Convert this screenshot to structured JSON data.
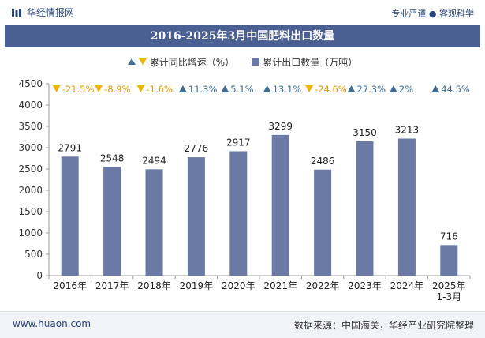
{
  "header": {
    "brand": "华经情报网",
    "tagline": "专业严谨 ● 客观科学"
  },
  "legend": {
    "growth_label": "累计同比增速（%）",
    "volume_label": "累计出口数量（万吨）"
  },
  "footer": {
    "url": "www.huaon.com",
    "source": "数据来源：中国海关，华经产业研究院整理"
  },
  "colors": {
    "bar": "#6a7aa4",
    "up": "#3f6e91",
    "down": "#f0b400",
    "title_bg": "#4a5f92"
  },
  "chart_data": {
    "type": "bar",
    "title": "2016-2025年3月中国肥料出口数量",
    "categories": [
      "2016年",
      "2017年",
      "2018年",
      "2019年",
      "2020年",
      "2021年",
      "2022年",
      "2023年",
      "2024年",
      "2025年\n1-3月"
    ],
    "series": [
      {
        "name": "累计出口数量（万吨）",
        "values": [
          2791,
          2548,
          2494,
          2776,
          2917,
          3299,
          2486,
          3150,
          3213,
          716
        ]
      },
      {
        "name": "累计同比增速（%）",
        "values": [
          -21.5,
          -8.9,
          -1.6,
          11.3,
          5.1,
          13.1,
          -24.6,
          27.3,
          2,
          44.5
        ]
      }
    ],
    "growth_labels": [
      "-21.5%",
      "-8.9%",
      "-1.6%",
      "11.3%",
      "5.1%",
      "13.1%",
      "-24.6%",
      "27.3%",
      "2%",
      "44.5%"
    ],
    "ylim": [
      0,
      4500
    ],
    "yticks": [
      0,
      500,
      1000,
      1500,
      2000,
      2500,
      3000,
      3500,
      4000,
      4500
    ],
    "xlabel": "",
    "ylabel": ""
  }
}
